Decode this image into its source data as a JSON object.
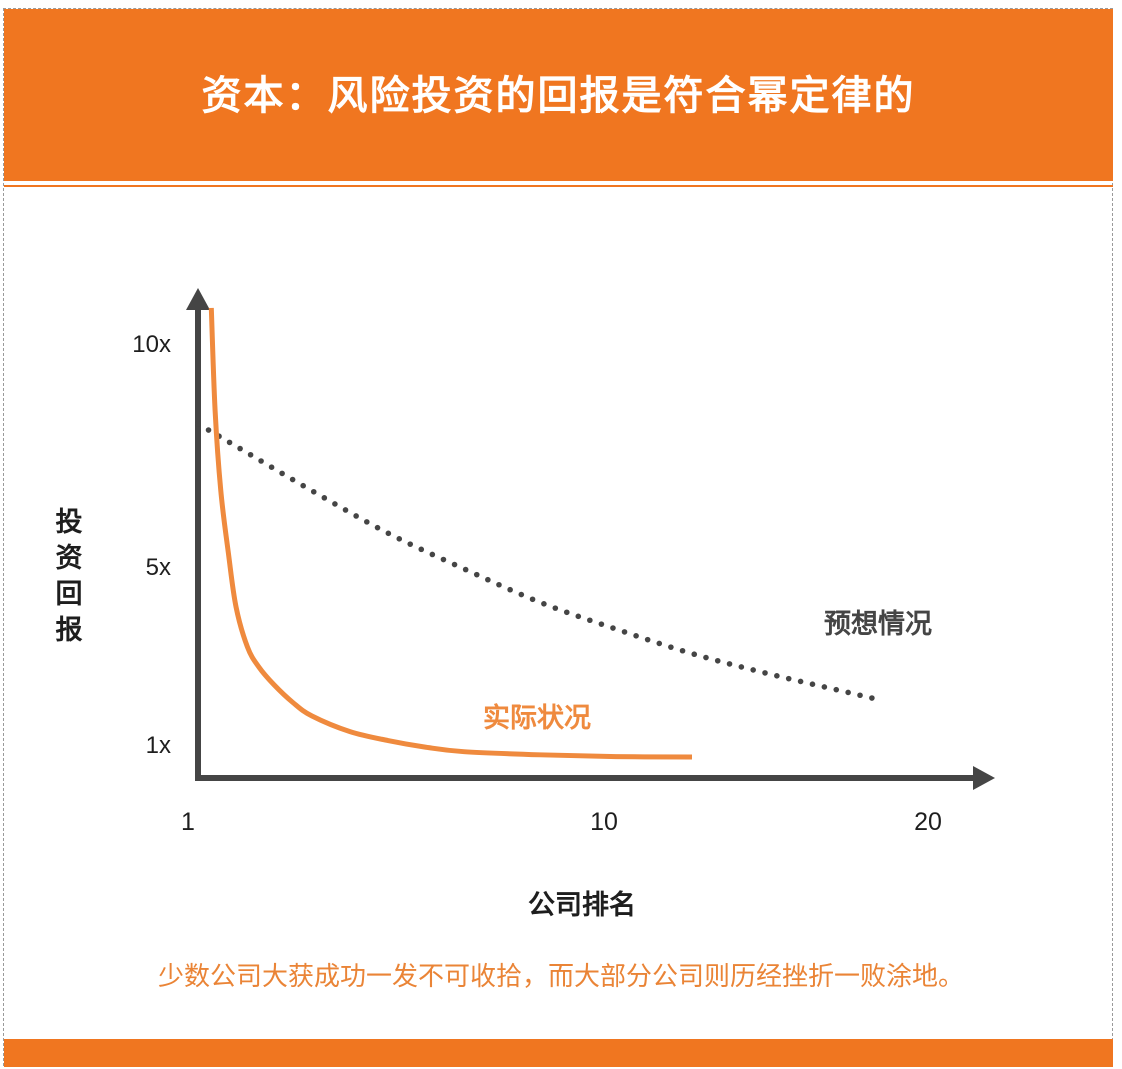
{
  "header": {
    "title": "资本：风险投资的回报是符合幂定律的"
  },
  "caption": "少数公司大获成功一发不可收拾，而大部分公司则历经挫折一败涂地。",
  "colors": {
    "accent": "#f07620",
    "actual_curve": "#ef8a3e",
    "actual_label": "#ef8a3e",
    "axis": "#454545",
    "expected_dots": "#454545",
    "text_dark": "#1e1e1e",
    "caption": "#ea8436"
  },
  "chart_data": {
    "type": "line",
    "title": "",
    "xlabel": "公司排名",
    "ylabel": "投资回报",
    "x_ticks": [
      "1",
      "10",
      "20"
    ],
    "y_ticks": [
      "10x",
      "5x",
      "1x"
    ],
    "xlim": [
      1,
      20
    ],
    "ylim": [
      1,
      10
    ],
    "grid": false,
    "legend": "none",
    "series": [
      {
        "name": "实际状况",
        "style": "solid",
        "x": [
          1.35,
          1.45,
          1.6,
          1.8,
          2.0,
          2.3,
          2.6,
          3.0,
          3.5,
          4.0,
          5.0,
          6.0,
          7.0,
          8.0,
          10.0,
          12.0,
          14.0
        ],
        "y": [
          10.8,
          8.5,
          6.7,
          5.3,
          4.1,
          3.2,
          2.75,
          2.35,
          1.95,
          1.65,
          1.3,
          1.1,
          0.95,
          0.85,
          0.78,
          0.74,
          0.73
        ]
      },
      {
        "name": "预想情况",
        "style": "dotted",
        "x": [
          1.0,
          2.0,
          4.0,
          6.0,
          8.0,
          10.0,
          12.0,
          14.0,
          16.0,
          18.0,
          19.0
        ],
        "y": [
          8.2,
          7.7,
          6.7,
          5.75,
          4.95,
          4.2,
          3.6,
          3.05,
          2.6,
          2.2,
          2.0
        ]
      }
    ]
  }
}
